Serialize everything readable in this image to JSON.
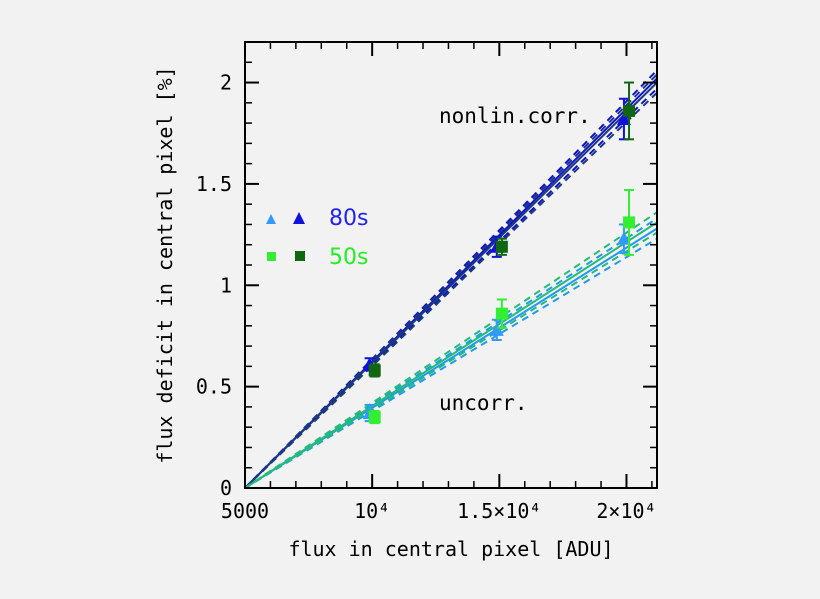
{
  "chart_data": {
    "type": "scatter",
    "xlabel": "flux in central pixel [ADU]",
    "ylabel": "flux deficit in central pixel [%]",
    "xlim": [
      5000,
      21200
    ],
    "ylim": [
      0,
      2.2
    ],
    "x_ticks": [
      {
        "value": 5000,
        "label": "5000"
      },
      {
        "value": 10000,
        "label": "10⁴"
      },
      {
        "value": 15000,
        "label": "1.5×10⁴"
      },
      {
        "value": 20000,
        "label": "2×10⁴"
      }
    ],
    "y_ticks": [
      {
        "value": 0,
        "label": "0"
      },
      {
        "value": 0.5,
        "label": "0.5"
      },
      {
        "value": 1,
        "label": "1"
      },
      {
        "value": 1.5,
        "label": "1.5"
      },
      {
        "value": 2,
        "label": "2"
      }
    ],
    "annotations": [
      {
        "text": "nonlin.corr.",
        "x": 14400,
        "y": 1.83
      },
      {
        "text": "uncorr.",
        "x": 13600,
        "y": 0.41
      }
    ],
    "legend": {
      "placement": "left",
      "entries": [
        {
          "label": "80s",
          "color": "#2222ee",
          "marker": "triangle",
          "uncorr_color": "#3399ff",
          "corr_color": "#1111dd"
        },
        {
          "label": "50s",
          "color": "#22ee22",
          "marker": "square",
          "uncorr_color": "#33ee33",
          "corr_color": "#116611"
        }
      ]
    },
    "series": [
      {
        "name": "80s",
        "group": "nonlin.corr.",
        "marker": "triangle",
        "color": "#1111dd",
        "points": [
          {
            "x": 9900,
            "y": 0.61,
            "err": 0.03
          },
          {
            "x": 14900,
            "y": 1.19,
            "err": 0.05
          },
          {
            "x": 19900,
            "y": 1.82,
            "err": 0.1
          }
        ]
      },
      {
        "name": "50s",
        "group": "nonlin.corr.",
        "marker": "square",
        "color": "#116611",
        "points": [
          {
            "x": 10100,
            "y": 0.58,
            "err": 0.03
          },
          {
            "x": 15100,
            "y": 1.19,
            "err": 0.04
          },
          {
            "x": 20100,
            "y": 1.86,
            "err": 0.14
          }
        ]
      },
      {
        "name": "80s",
        "group": "uncorr.",
        "marker": "triangle",
        "color": "#3399ff",
        "points": [
          {
            "x": 9900,
            "y": 0.37,
            "err": 0.04
          },
          {
            "x": 14900,
            "y": 0.78,
            "err": 0.05
          },
          {
            "x": 19900,
            "y": 1.23,
            "err": 0.07
          }
        ]
      },
      {
        "name": "50s",
        "group": "uncorr.",
        "marker": "square",
        "color": "#33ee33",
        "points": [
          {
            "x": 10100,
            "y": 0.35,
            "err": 0.03
          },
          {
            "x": 15100,
            "y": 0.86,
            "err": 0.07
          },
          {
            "x": 20100,
            "y": 1.31,
            "err": 0.16
          }
        ]
      }
    ],
    "fits": [
      {
        "group": "nonlin.corr.",
        "color": "#1111cc",
        "style": "solid",
        "x": [
          5000,
          21200
        ],
        "y": [
          0,
          2.02
        ]
      },
      {
        "group": "nonlin.corr.",
        "color": "#1111cc",
        "style": "dashed",
        "x": [
          5000,
          21200
        ],
        "y": [
          0,
          2.06
        ]
      },
      {
        "group": "nonlin.corr.",
        "color": "#1111cc",
        "style": "dashed",
        "x": [
          5000,
          21200
        ],
        "y": [
          0,
          1.97
        ]
      },
      {
        "group": "nonlin.corr.",
        "color": "#1b3a7a",
        "style": "solid",
        "x": [
          5000,
          21200
        ],
        "y": [
          0,
          2.0
        ]
      },
      {
        "group": "nonlin.corr.",
        "color": "#1b3a7a",
        "style": "dashed",
        "x": [
          5000,
          21200
        ],
        "y": [
          0,
          2.04
        ]
      },
      {
        "group": "nonlin.corr.",
        "color": "#1b3a7a",
        "style": "dashed",
        "x": [
          5000,
          21200
        ],
        "y": [
          0,
          1.95
        ]
      },
      {
        "group": "uncorr.",
        "color": "#2299ee",
        "style": "solid",
        "x": [
          5000,
          21200
        ],
        "y": [
          0,
          1.28
        ]
      },
      {
        "group": "uncorr.",
        "color": "#2299ee",
        "style": "dashed",
        "x": [
          5000,
          21200
        ],
        "y": [
          0,
          1.33
        ]
      },
      {
        "group": "uncorr.",
        "color": "#2299ee",
        "style": "dashed",
        "x": [
          5000,
          21200
        ],
        "y": [
          0,
          1.23
        ]
      },
      {
        "group": "uncorr.",
        "color": "#22bb77",
        "style": "solid",
        "x": [
          5000,
          21200
        ],
        "y": [
          0,
          1.31
        ]
      },
      {
        "group": "uncorr.",
        "color": "#22bb77",
        "style": "dashed",
        "x": [
          5000,
          21200
        ],
        "y": [
          0,
          1.36
        ]
      },
      {
        "group": "uncorr.",
        "color": "#22bb77",
        "style": "dashed",
        "x": [
          5000,
          21200
        ],
        "y": [
          0,
          1.26
        ]
      }
    ]
  }
}
